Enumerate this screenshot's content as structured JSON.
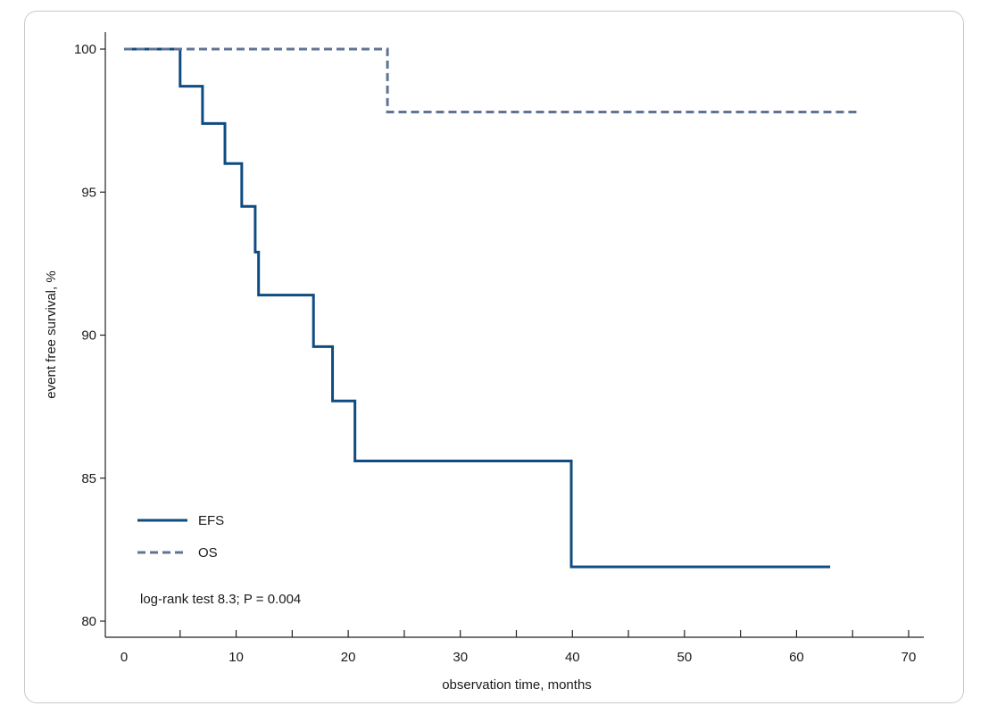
{
  "chart_data": {
    "type": "line",
    "xlabel": "observation time, months",
    "ylabel": "event free survival, %",
    "xlim": [
      0,
      70
    ],
    "ylim": [
      80,
      100
    ],
    "x_ticks": [
      0,
      10,
      20,
      30,
      40,
      50,
      60,
      70
    ],
    "y_ticks": [
      80,
      85,
      90,
      95,
      100
    ],
    "grid": false,
    "legend_position": "bottom-left",
    "annotation": "log-rank test 8.3; P = 0.004",
    "series": [
      {
        "name": "EFS",
        "style": "solid",
        "color": "#0f4c81",
        "step": true,
        "x": [
          0,
          5.0,
          7.0,
          9.0,
          10.5,
          11.7,
          12.0,
          16.9,
          18.6,
          20.6,
          39.9,
          63.0
        ],
        "y": [
          100,
          98.7,
          97.4,
          96.0,
          94.5,
          92.9,
          91.4,
          89.6,
          87.7,
          85.6,
          81.9,
          81.9
        ]
      },
      {
        "name": "OS",
        "style": "dashed",
        "color": "#5f7494",
        "step": true,
        "x": [
          0,
          23.5,
          65.5
        ],
        "y": [
          100,
          97.8,
          97.8
        ]
      }
    ]
  }
}
